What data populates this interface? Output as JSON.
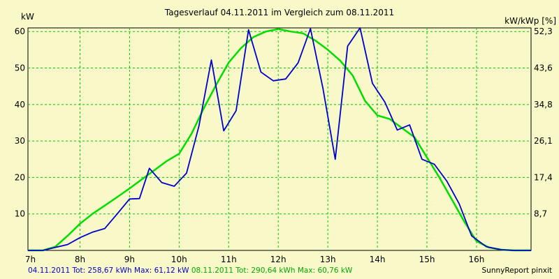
{
  "chart_data": {
    "type": "line",
    "title": "Tagesverlauf 04.11.2011 im Vergleich zum 08.11.2011",
    "ylabel_left": "kW",
    "ylabel_right": "kW/kWp [%]",
    "x_ticks": [
      "7h",
      "8h",
      "9h",
      "10h",
      "11h",
      "12h",
      "13h",
      "14h",
      "15h",
      "16h"
    ],
    "y_ticks_left": [
      "10",
      "20",
      "30",
      "40",
      "50",
      "60"
    ],
    "y_ticks_right": [
      "8,7",
      "17,4",
      "26,1",
      "34,8",
      "43,6",
      "52,3"
    ],
    "xlim": [
      6.95,
      17.1
    ],
    "ylim": [
      0,
      61
    ],
    "grid": true,
    "series": [
      {
        "name": "04.11.2011",
        "color": "#0000cc",
        "x": [
          6.95,
          7.25,
          7.5,
          7.75,
          8.0,
          8.25,
          8.5,
          8.75,
          9.0,
          9.2,
          9.4,
          9.65,
          9.9,
          10.15,
          10.4,
          10.65,
          10.9,
          11.15,
          11.4,
          11.65,
          11.9,
          12.15,
          12.4,
          12.65,
          12.9,
          13.15,
          13.4,
          13.65,
          13.9,
          14.15,
          14.4,
          14.65,
          14.9,
          15.15,
          15.4,
          15.65,
          15.9,
          16.2,
          16.5,
          16.75,
          17.1
        ],
        "y": [
          0,
          0,
          0.8,
          1.6,
          3.5,
          5,
          6,
          10,
          14.1,
          14.2,
          22.5,
          18.6,
          17.6,
          21.2,
          34.1,
          52.2,
          32.8,
          38.3,
          60.5,
          48.9,
          46.5,
          47,
          51.4,
          60.8,
          44.5,
          25,
          56,
          61,
          45.8,
          40.7,
          33,
          34.4,
          25,
          23.6,
          19,
          12.8,
          4,
          1,
          0.2,
          0,
          0
        ]
      },
      {
        "name": "08.11.2011",
        "color": "#00dd00",
        "x": [
          6.95,
          7.25,
          7.5,
          7.75,
          8.0,
          8.25,
          8.5,
          8.75,
          9.0,
          9.25,
          9.5,
          9.75,
          10.0,
          10.25,
          10.5,
          10.75,
          11.0,
          11.25,
          11.5,
          11.75,
          12.0,
          12.25,
          12.5,
          12.75,
          13.0,
          13.25,
          13.5,
          13.75,
          14.0,
          14.25,
          14.5,
          14.75,
          15.0,
          15.25,
          15.5,
          15.75,
          16.0,
          16.25,
          16.5,
          16.75,
          17.1
        ],
        "y": [
          0,
          0,
          1,
          4,
          7.3,
          10,
          12.3,
          14.6,
          17,
          19.5,
          22,
          24.5,
          26.5,
          32,
          39,
          45.5,
          51.5,
          55.5,
          58.5,
          60,
          60.7,
          60,
          59.5,
          57.5,
          55,
          52,
          48,
          41,
          37,
          36,
          33.5,
          31,
          25.5,
          20,
          14,
          8,
          2.5,
          0.8,
          0.2,
          0,
          0
        ]
      }
    ]
  },
  "footer": {
    "series1_summary": "04.11.2011 Tot: 258,67 kWh Max: 61,12 kW",
    "series2_summary": "08.11.2011 Tot: 290,64 kWh Max: 60,76 kW",
    "brand": "SunnyReport pinxit"
  },
  "colors": {
    "background": "#f8f8c8",
    "grid": "#00cc00",
    "series1": "#0000cc",
    "series2": "#00dd00"
  }
}
